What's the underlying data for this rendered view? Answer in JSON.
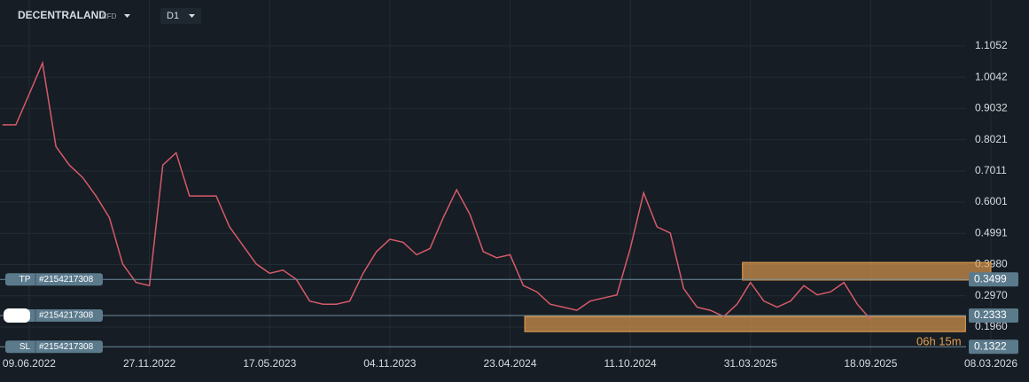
{
  "header": {
    "symbol": "DECENTRALAND",
    "instrument": "CFD",
    "timeframe": "D1"
  },
  "chart_data": {
    "type": "line",
    "color": "#d65a6a",
    "grid": true,
    "categories": [
      null,
      null,
      "09.06.2022",
      null,
      null,
      null,
      null,
      null,
      null,
      null,
      null,
      "27.11.2022",
      null,
      null,
      null,
      null,
      null,
      null,
      null,
      null,
      "17.05.2023",
      null,
      null,
      null,
      null,
      null,
      null,
      null,
      null,
      "04.11.2023",
      null,
      null,
      null,
      null,
      null,
      null,
      null,
      null,
      "23.04.2024",
      null,
      null,
      null,
      null,
      null,
      null,
      null,
      null,
      "11.10.2024",
      null,
      null,
      null,
      null,
      null,
      null,
      null,
      null,
      "31.03.2025",
      null,
      null,
      null,
      null,
      null,
      null,
      null,
      null,
      "18.09.2025",
      null,
      null,
      null,
      null,
      null,
      null,
      null,
      null,
      "08.03.2026"
    ],
    "values": [
      0.85,
      0.85,
      0.95,
      1.05,
      0.78,
      0.72,
      0.68,
      0.62,
      0.55,
      0.4,
      0.34,
      0.33,
      0.72,
      0.76,
      0.62,
      0.62,
      0.62,
      0.52,
      0.46,
      0.4,
      0.37,
      0.38,
      0.35,
      0.28,
      0.27,
      0.27,
      0.28,
      0.37,
      0.44,
      0.48,
      0.47,
      0.43,
      0.45,
      0.55,
      0.64,
      0.56,
      0.44,
      0.42,
      0.43,
      0.33,
      0.31,
      0.27,
      0.26,
      0.25,
      0.28,
      0.29,
      0.3,
      0.45,
      0.63,
      0.52,
      0.5,
      0.32,
      0.26,
      0.25,
      0.23,
      0.27,
      0.34,
      0.28,
      0.26,
      0.28,
      0.33,
      0.3,
      0.31,
      0.34,
      0.27,
      0.22,
      null,
      null,
      null,
      null,
      null,
      null,
      null,
      null,
      null
    ],
    "ylim": [
      0.107,
      1.254
    ],
    "yticks": [
      1.1052,
      1.0042,
      0.9032,
      0.8021,
      0.7011,
      0.6001,
      0.4991,
      {
        "value": 0.398,
        "label": "0.3980"
      },
      {
        "value": 0.297,
        "label": "0.2970"
      },
      {
        "value": 0.196,
        "label": "0.1960"
      }
    ],
    "zones": [
      {
        "color": "#e8a050",
        "y": [
          0.348,
          0.405
        ],
        "x": [
          55.4,
          74
        ]
      },
      {
        "color": "#e8a050",
        "y": [
          0.181,
          0.23
        ],
        "x": [
          39.1,
          72.1
        ]
      }
    ],
    "levels": [
      {
        "label": "TP",
        "order": "#2154217308",
        "value": 0.3499
      },
      {
        "order": "#2154217308",
        "value": 0.2333
      },
      {
        "label": "SL",
        "order": "#2154217308",
        "value": 0.1322
      }
    ],
    "timer": "06h 15m"
  }
}
